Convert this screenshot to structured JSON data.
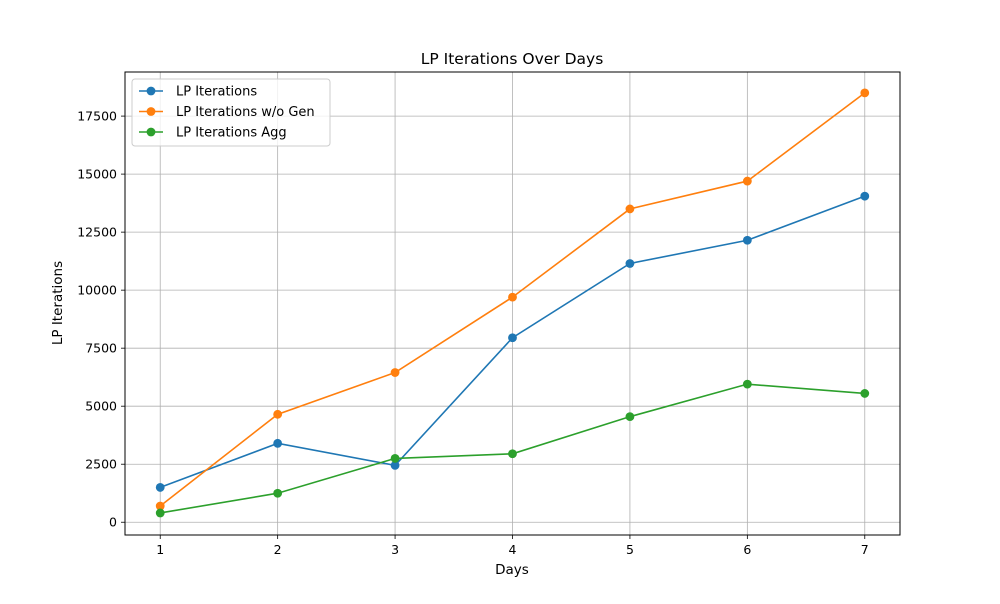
{
  "chart_data": {
    "type": "line",
    "title": "LP Iterations Over Days",
    "xlabel": "Days",
    "ylabel": "LP Iterations",
    "x": [
      1,
      2,
      3,
      4,
      5,
      6,
      7
    ],
    "xlim": [
      0.7,
      7.3
    ],
    "ylim": [
      -550,
      19400
    ],
    "xticks": [
      "1",
      "2",
      "3",
      "4",
      "5",
      "6",
      "7"
    ],
    "yticks": [
      "0",
      "2500",
      "5000",
      "7500",
      "10000",
      "12500",
      "15000",
      "17500"
    ],
    "grid": true,
    "legend_position": "upper-left",
    "series": [
      {
        "name": "LP Iterations",
        "color": "#1f77b4",
        "marker": "circle",
        "values": [
          1500,
          3400,
          2450,
          7950,
          11150,
          12150,
          14050
        ]
      },
      {
        "name": "LP Iterations w/o Gen",
        "color": "#ff7f0e",
        "marker": "circle",
        "values": [
          700,
          4650,
          6450,
          9700,
          13500,
          14700,
          18500
        ]
      },
      {
        "name": "LP Iterations Agg",
        "color": "#2ca02c",
        "marker": "circle",
        "values": [
          400,
          1250,
          2750,
          2950,
          4550,
          5950,
          5550
        ]
      }
    ]
  }
}
